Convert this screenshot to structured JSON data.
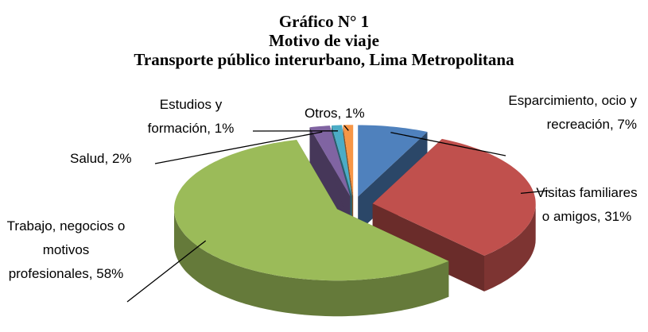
{
  "chart_data": {
    "type": "pie",
    "title": "Gráfico N° 1",
    "subtitle": [
      "Motivo de viaje",
      "Transporte público interurbano, Lima Metropolitana"
    ],
    "categories": [
      "Esparcimiento, ocio y recreación,",
      "Visitas familiares o amigos,",
      "Trabajo, negocios o motivos profesionales,",
      "Salud,",
      "Estudios y formación,",
      "Otros,"
    ],
    "values": [
      7,
      31,
      58,
      2,
      1,
      1
    ],
    "value_labels": [
      "7%",
      "31%",
      "58%",
      "2%",
      "1%",
      "1%"
    ],
    "colors": [
      "#4f81bd",
      "#c0504d",
      "#9bbb59",
      "#8064a2",
      "#4bacc6",
      "#f79646"
    ]
  }
}
